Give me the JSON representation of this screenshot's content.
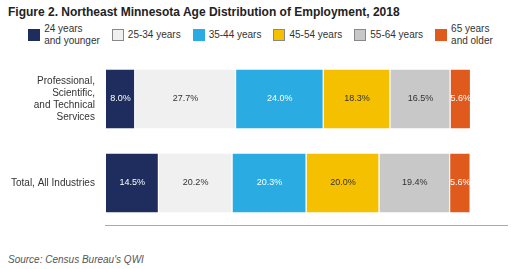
{
  "chart_data": {
    "type": "bar",
    "orientation": "horizontal",
    "stacked": true,
    "title": "Figure 2. Northeast Minnesota Age Distribution of Employment, 2018",
    "categories": [
      "Professional,\nScientific,\nand Technical\nServices",
      "Total, All Industries"
    ],
    "series": [
      {
        "name": "24 years\nand younger",
        "color": "#1e2d5e",
        "values": [
          8.0,
          14.5
        ],
        "value_labels": [
          "8.0%",
          "14.5%"
        ]
      },
      {
        "name": "25-34 years",
        "color": "#f0f0f0",
        "values": [
          27.7,
          20.2
        ],
        "value_labels": [
          "27.7%",
          "20.2%"
        ]
      },
      {
        "name": "35-44 years",
        "color": "#2aabe2",
        "values": [
          24.0,
          20.3
        ],
        "value_labels": [
          "24.0%",
          "20.3%"
        ]
      },
      {
        "name": "45-54 years",
        "color": "#f5c000",
        "values": [
          18.3,
          20.0
        ],
        "value_labels": [
          "18.3%",
          "20.0%"
        ]
      },
      {
        "name": "55-64 years",
        "color": "#c8c8c8",
        "values": [
          16.5,
          19.4
        ],
        "value_labels": [
          "16.5%",
          "19.4%"
        ]
      },
      {
        "name": "65 years\nand older",
        "color": "#e05a1e",
        "values": [
          5.6,
          5.6
        ],
        "value_labels": [
          "5.6%",
          "5.6%"
        ]
      }
    ],
    "xlim": [
      0,
      110
    ],
    "tick_labels": "y",
    "grid": false,
    "legend": "top",
    "data_labels": true,
    "annotations": [
      "Source: Census Bureau's QWI"
    ]
  }
}
